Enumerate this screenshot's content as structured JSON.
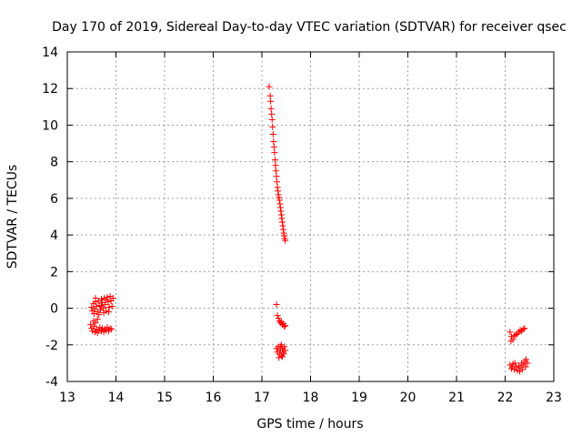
{
  "chart_data": {
    "type": "scatter",
    "title": "Day 170 of 2019, Sidereal Day-to-day VTEC variation (SDTVAR) for receiver qsec",
    "xlabel": "GPS time / hours",
    "ylabel": "SDTVAR / TECUs",
    "xlim": [
      13,
      23
    ],
    "ylim": [
      -4,
      14
    ],
    "xticks": [
      13,
      14,
      15,
      16,
      17,
      18,
      19,
      20,
      21,
      22,
      23
    ],
    "yticks": [
      -4,
      -2,
      0,
      2,
      4,
      6,
      8,
      10,
      12,
      14
    ],
    "grid": true,
    "marker": "+",
    "color": "#ff0000",
    "series": [
      {
        "name": "SDTVAR",
        "points": [
          [
            13.5,
            0.05
          ],
          [
            13.52,
            -0.15
          ],
          [
            13.54,
            0.25
          ],
          [
            13.56,
            -0.05
          ],
          [
            13.58,
            0.35
          ],
          [
            13.6,
            0.1
          ],
          [
            13.62,
            -0.2
          ],
          [
            13.64,
            0.4
          ],
          [
            13.66,
            0.15
          ],
          [
            13.68,
            -0.1
          ],
          [
            13.7,
            0.5
          ],
          [
            13.72,
            0.3
          ],
          [
            13.74,
            0.0
          ],
          [
            13.76,
            0.55
          ],
          [
            13.78,
            0.2
          ],
          [
            13.8,
            -0.15
          ],
          [
            13.82,
            0.6
          ],
          [
            13.84,
            0.35
          ],
          [
            13.86,
            0.05
          ],
          [
            13.88,
            0.65
          ],
          [
            13.9,
            0.4
          ],
          [
            13.92,
            0.1
          ],
          [
            13.94,
            0.55
          ],
          [
            13.55,
            -0.3
          ],
          [
            13.65,
            -0.35
          ],
          [
            13.75,
            -0.25
          ],
          [
            13.85,
            -0.2
          ],
          [
            13.58,
            0.55
          ],
          [
            13.7,
            0.1
          ],
          [
            13.8,
            0.45
          ],
          [
            13.48,
            -0.9
          ],
          [
            13.5,
            -1.1
          ],
          [
            13.52,
            -1.25
          ],
          [
            13.55,
            -1.0
          ],
          [
            13.57,
            -1.3
          ],
          [
            13.6,
            -1.15
          ],
          [
            13.62,
            -1.35
          ],
          [
            13.65,
            -1.2
          ],
          [
            13.67,
            -1.05
          ],
          [
            13.7,
            -1.25
          ],
          [
            13.72,
            -1.1
          ],
          [
            13.75,
            -1.3
          ],
          [
            13.77,
            -1.15
          ],
          [
            13.8,
            -1.2
          ],
          [
            13.82,
            -1.05
          ],
          [
            13.85,
            -1.25
          ],
          [
            13.88,
            -1.1
          ],
          [
            13.91,
            -1.15
          ],
          [
            13.54,
            -0.7
          ],
          [
            13.58,
            -0.8
          ],
          [
            13.62,
            -0.6
          ],
          [
            17.15,
            12.1
          ],
          [
            17.17,
            11.6
          ],
          [
            17.18,
            11.3
          ],
          [
            17.19,
            10.9
          ],
          [
            17.2,
            10.6
          ],
          [
            17.21,
            10.3
          ],
          [
            17.22,
            9.9
          ],
          [
            17.23,
            9.5
          ],
          [
            17.24,
            9.1
          ],
          [
            17.25,
            8.8
          ],
          [
            17.26,
            8.5
          ],
          [
            17.27,
            8.1
          ],
          [
            17.28,
            7.8
          ],
          [
            17.29,
            7.5
          ],
          [
            17.3,
            7.2
          ],
          [
            17.31,
            6.9
          ],
          [
            17.32,
            6.6
          ],
          [
            17.33,
            6.4
          ],
          [
            17.34,
            6.2
          ],
          [
            17.35,
            6.05
          ],
          [
            17.36,
            5.9
          ],
          [
            17.37,
            5.7
          ],
          [
            17.38,
            5.5
          ],
          [
            17.39,
            5.3
          ],
          [
            17.4,
            5.1
          ],
          [
            17.41,
            4.9
          ],
          [
            17.42,
            4.7
          ],
          [
            17.43,
            4.5
          ],
          [
            17.44,
            4.3
          ],
          [
            17.45,
            4.1
          ],
          [
            17.46,
            3.95
          ],
          [
            17.47,
            3.8
          ],
          [
            17.48,
            3.7
          ],
          [
            17.3,
            0.2
          ],
          [
            17.32,
            -0.4
          ],
          [
            17.34,
            -0.55
          ],
          [
            17.36,
            -0.7
          ],
          [
            17.38,
            -0.8
          ],
          [
            17.4,
            -0.75
          ],
          [
            17.42,
            -0.9
          ],
          [
            17.44,
            -0.85
          ],
          [
            17.46,
            -1.0
          ],
          [
            17.48,
            -0.95
          ],
          [
            17.3,
            -2.2
          ],
          [
            17.32,
            -2.4
          ],
          [
            17.34,
            -2.1
          ],
          [
            17.36,
            -2.5
          ],
          [
            17.38,
            -2.3
          ],
          [
            17.4,
            -2.6
          ],
          [
            17.42,
            -2.2
          ],
          [
            17.44,
            -2.4
          ],
          [
            17.46,
            -2.1
          ],
          [
            17.48,
            -2.3
          ],
          [
            17.35,
            -2.7
          ],
          [
            17.4,
            -2.0
          ],
          [
            17.45,
            -2.5
          ],
          [
            17.38,
            -2.1
          ],
          [
            17.42,
            -2.65
          ],
          [
            22.1,
            -1.3
          ],
          [
            22.13,
            -1.55
          ],
          [
            22.16,
            -1.7
          ],
          [
            22.19,
            -1.5
          ],
          [
            22.22,
            -1.45
          ],
          [
            22.25,
            -1.4
          ],
          [
            22.28,
            -1.3
          ],
          [
            22.31,
            -1.2
          ],
          [
            22.34,
            -1.25
          ],
          [
            22.37,
            -1.15
          ],
          [
            22.4,
            -1.1
          ],
          [
            22.12,
            -1.8
          ],
          [
            22.1,
            -3.1
          ],
          [
            22.13,
            -3.3
          ],
          [
            22.16,
            -3.05
          ],
          [
            22.19,
            -3.35
          ],
          [
            22.22,
            -3.2
          ],
          [
            22.25,
            -3.4
          ],
          [
            22.28,
            -3.15
          ],
          [
            22.31,
            -3.25
          ],
          [
            22.34,
            -3.0
          ],
          [
            22.37,
            -3.1
          ],
          [
            22.4,
            -2.9
          ],
          [
            22.43,
            -2.8
          ],
          [
            22.46,
            -3.0
          ],
          [
            22.2,
            -3.0
          ],
          [
            22.3,
            -3.45
          ],
          [
            22.42,
            -3.2
          ],
          [
            22.15,
            -3.2
          ],
          [
            22.35,
            -3.35
          ]
        ]
      }
    ]
  }
}
